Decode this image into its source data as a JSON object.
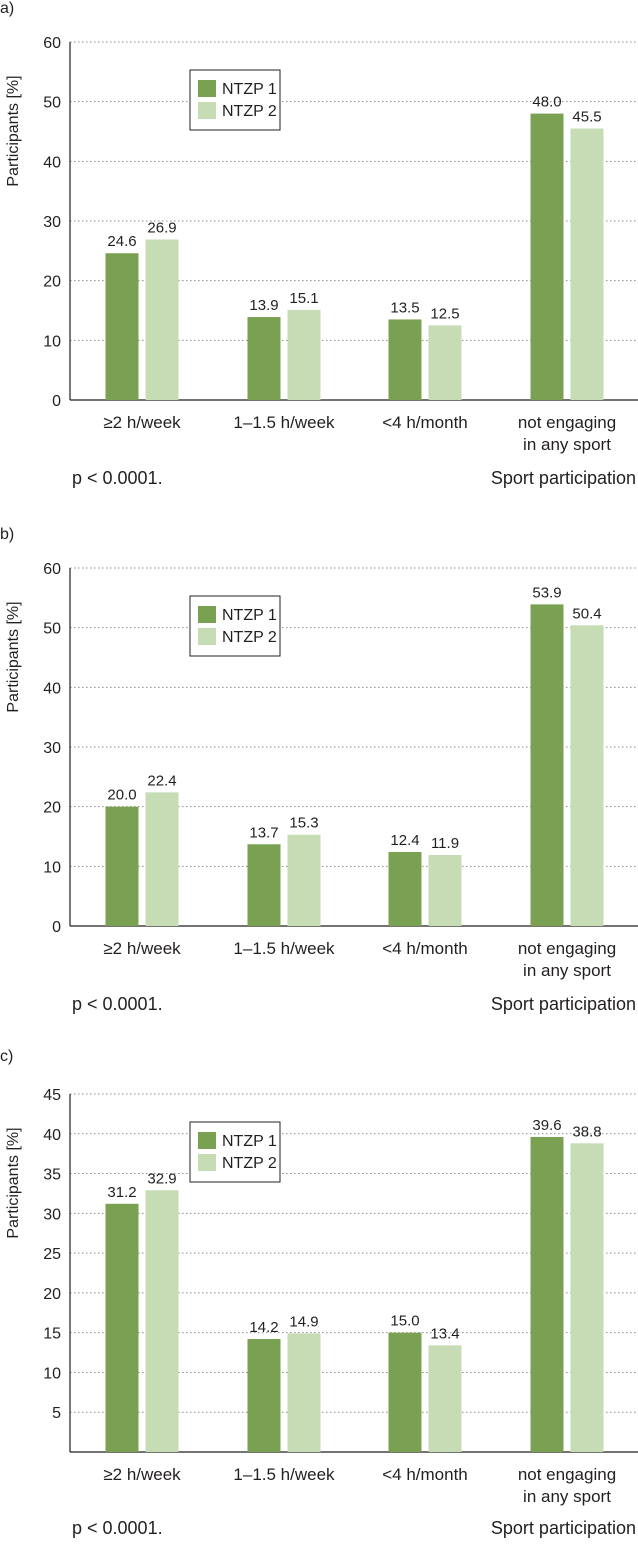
{
  "chart_data": [
    {
      "type": "bar",
      "panel_label": "a)",
      "categories": [
        "≥2 h/week",
        "1–1.5 h/week",
        "<4 h/month",
        "not engaging|in any sport"
      ],
      "series": [
        {
          "name": "NTZP 1",
          "color": "#7aa152",
          "values": [
            24.6,
            13.9,
            13.5,
            48.0
          ]
        },
        {
          "name": "NTZP 2",
          "color": "#c5dcb4",
          "values": [
            26.9,
            15.1,
            12.5,
            45.5
          ]
        }
      ],
      "ylabel": "Participants [%]",
      "xlabel": "Sport participation",
      "ylim": [
        0,
        60
      ],
      "yticks": [
        0,
        10,
        20,
        30,
        40,
        50,
        60
      ],
      "grid": true,
      "legend": "top-left",
      "note": "p < 0.0001."
    },
    {
      "type": "bar",
      "panel_label": "b)",
      "categories": [
        "≥2 h/week",
        "1–1.5 h/week",
        "<4 h/month",
        "not engaging|in any sport"
      ],
      "series": [
        {
          "name": "NTZP 1",
          "color": "#7aa152",
          "values": [
            20.0,
            13.7,
            12.4,
            53.9
          ]
        },
        {
          "name": "NTZP 2",
          "color": "#c5dcb4",
          "values": [
            22.4,
            15.3,
            11.9,
            50.4
          ]
        }
      ],
      "ylabel": "Participants [%]",
      "xlabel": "Sport participation",
      "ylim": [
        0,
        60
      ],
      "yticks": [
        0,
        10,
        20,
        30,
        40,
        50,
        60
      ],
      "grid": true,
      "legend": "top-left",
      "note": "p < 0.0001."
    },
    {
      "type": "bar",
      "panel_label": "c)",
      "categories": [
        "≥2 h/week",
        "1–1.5 h/week",
        "<4 h/month",
        "not engaging|in any sport"
      ],
      "series": [
        {
          "name": "NTZP 1",
          "color": "#7aa152",
          "values": [
            31.2,
            14.2,
            15.0,
            39.6
          ]
        },
        {
          "name": "NTZP 2",
          "color": "#c5dcb4",
          "values": [
            32.9,
            14.9,
            13.4,
            38.8
          ]
        }
      ],
      "ylabel": "Participants [%]",
      "xlabel": "Sport participation",
      "ylim": [
        0,
        45
      ],
      "yticks": [
        5,
        10,
        15,
        20,
        25,
        30,
        35,
        40,
        45
      ],
      "grid": true,
      "legend": "top-left",
      "note": "p < 0.0001."
    }
  ]
}
